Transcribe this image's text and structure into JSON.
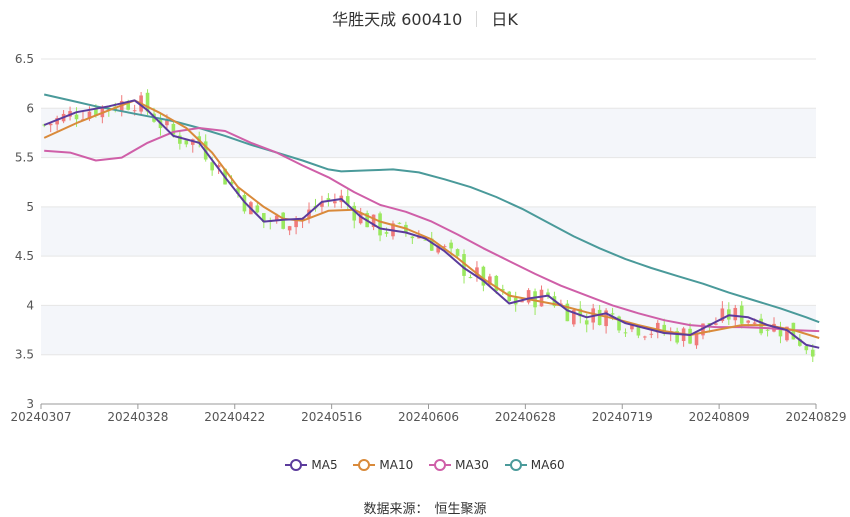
{
  "header": {
    "stock": "华胜天成 600410",
    "period": "日K"
  },
  "source": {
    "label": "数据来源：",
    "name": "恒生聚源"
  },
  "colors": {
    "up": "#f07a7a",
    "down": "#9ae85f",
    "band": "#f4f6fa",
    "grid": "#e6e6e6",
    "MA5": "#5b3b9c",
    "MA10": "#d98a3a",
    "MA30": "#cf5fa8",
    "MA60": "#4a9a9a"
  },
  "chart_data": {
    "type": "candlestick",
    "ylim": [
      3,
      6.5
    ],
    "yticks": [
      "3",
      "3.5",
      "4",
      "4.5",
      "5",
      "5.5",
      "6",
      "6.5"
    ],
    "xticks": [
      "20240307",
      "20240328",
      "20240422",
      "20240516",
      "20240606",
      "20240628",
      "20240719",
      "20240809",
      "20240829"
    ],
    "legend": [
      "MA5",
      "MA10",
      "MA30",
      "MA60"
    ],
    "num_days": 120,
    "ma": {
      "MA5": [
        [
          0,
          5.83
        ],
        [
          5,
          5.96
        ],
        [
          10,
          6.02
        ],
        [
          14,
          6.08
        ],
        [
          16,
          5.98
        ],
        [
          20,
          5.72
        ],
        [
          24,
          5.65
        ],
        [
          28,
          5.3
        ],
        [
          31,
          5.05
        ],
        [
          34,
          4.85
        ],
        [
          37,
          4.87
        ],
        [
          40,
          4.88
        ],
        [
          43,
          5.05
        ],
        [
          46,
          5.08
        ],
        [
          49,
          4.9
        ],
        [
          52,
          4.78
        ],
        [
          56,
          4.74
        ],
        [
          59,
          4.68
        ],
        [
          62,
          4.55
        ],
        [
          65,
          4.38
        ],
        [
          68,
          4.25
        ],
        [
          72,
          4.02
        ],
        [
          75,
          4.07
        ],
        [
          78,
          4.1
        ],
        [
          81,
          3.95
        ],
        [
          84,
          3.88
        ],
        [
          87,
          3.92
        ],
        [
          90,
          3.82
        ],
        [
          93,
          3.77
        ],
        [
          96,
          3.72
        ],
        [
          100,
          3.7
        ],
        [
          103,
          3.8
        ],
        [
          106,
          3.9
        ],
        [
          109,
          3.88
        ],
        [
          112,
          3.8
        ],
        [
          115,
          3.75
        ],
        [
          118,
          3.6
        ],
        [
          120,
          3.57
        ]
      ],
      "MA10": [
        [
          0,
          5.7
        ],
        [
          5,
          5.85
        ],
        [
          10,
          5.98
        ],
        [
          14,
          6.08
        ],
        [
          18,
          5.95
        ],
        [
          22,
          5.8
        ],
        [
          26,
          5.55
        ],
        [
          30,
          5.2
        ],
        [
          34,
          5.0
        ],
        [
          37,
          4.88
        ],
        [
          40,
          4.86
        ],
        [
          44,
          4.96
        ],
        [
          48,
          4.97
        ],
        [
          52,
          4.85
        ],
        [
          56,
          4.78
        ],
        [
          60,
          4.67
        ],
        [
          64,
          4.48
        ],
        [
          68,
          4.27
        ],
        [
          72,
          4.1
        ],
        [
          76,
          4.05
        ],
        [
          80,
          4.0
        ],
        [
          84,
          3.93
        ],
        [
          88,
          3.87
        ],
        [
          92,
          3.8
        ],
        [
          96,
          3.74
        ],
        [
          100,
          3.7
        ],
        [
          104,
          3.75
        ],
        [
          108,
          3.8
        ],
        [
          112,
          3.8
        ],
        [
          116,
          3.75
        ],
        [
          120,
          3.67
        ]
      ],
      "MA30": [
        [
          0,
          5.57
        ],
        [
          4,
          5.55
        ],
        [
          8,
          5.47
        ],
        [
          12,
          5.5
        ],
        [
          16,
          5.65
        ],
        [
          20,
          5.76
        ],
        [
          24,
          5.8
        ],
        [
          28,
          5.77
        ],
        [
          32,
          5.65
        ],
        [
          36,
          5.55
        ],
        [
          40,
          5.42
        ],
        [
          44,
          5.3
        ],
        [
          48,
          5.15
        ],
        [
          52,
          5.02
        ],
        [
          56,
          4.95
        ],
        [
          60,
          4.85
        ],
        [
          64,
          4.72
        ],
        [
          68,
          4.58
        ],
        [
          72,
          4.45
        ],
        [
          76,
          4.32
        ],
        [
          80,
          4.2
        ],
        [
          84,
          4.1
        ],
        [
          88,
          4.0
        ],
        [
          92,
          3.92
        ],
        [
          96,
          3.85
        ],
        [
          100,
          3.8
        ],
        [
          104,
          3.78
        ],
        [
          108,
          3.78
        ],
        [
          112,
          3.77
        ],
        [
          116,
          3.75
        ],
        [
          120,
          3.74
        ]
      ],
      "MA60": [
        [
          0,
          6.14
        ],
        [
          4,
          6.08
        ],
        [
          8,
          6.02
        ],
        [
          12,
          5.97
        ],
        [
          16,
          5.92
        ],
        [
          20,
          5.87
        ],
        [
          24,
          5.8
        ],
        [
          28,
          5.72
        ],
        [
          32,
          5.63
        ],
        [
          36,
          5.55
        ],
        [
          40,
          5.47
        ],
        [
          44,
          5.38
        ],
        [
          46,
          5.36
        ],
        [
          50,
          5.37
        ],
        [
          54,
          5.38
        ],
        [
          58,
          5.35
        ],
        [
          62,
          5.28
        ],
        [
          66,
          5.2
        ],
        [
          70,
          5.1
        ],
        [
          74,
          4.98
        ],
        [
          78,
          4.84
        ],
        [
          82,
          4.7
        ],
        [
          86,
          4.58
        ],
        [
          90,
          4.47
        ],
        [
          94,
          4.38
        ],
        [
          98,
          4.3
        ],
        [
          102,
          4.22
        ],
        [
          106,
          4.13
        ],
        [
          110,
          4.05
        ],
        [
          114,
          3.97
        ],
        [
          118,
          3.88
        ],
        [
          120,
          3.83
        ]
      ]
    }
  }
}
